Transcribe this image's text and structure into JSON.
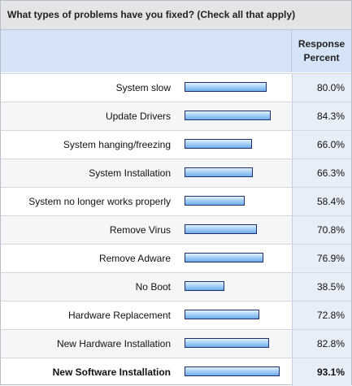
{
  "question": "What types of problems have you fixed? (Check all that apply)",
  "header": {
    "response_percent": "Response\nPercent"
  },
  "rows": [
    {
      "label": "System slow",
      "percent_text": "80.0%",
      "value": 80.0
    },
    {
      "label": "Update Drivers",
      "percent_text": "84.3%",
      "value": 84.3
    },
    {
      "label": "System hanging/freezing",
      "percent_text": "66.0%",
      "value": 66.0
    },
    {
      "label": "System Installation",
      "percent_text": "66.3%",
      "value": 66.3
    },
    {
      "label": "System no longer works properly",
      "percent_text": "58.4%",
      "value": 58.4
    },
    {
      "label": "Remove Virus",
      "percent_text": "70.8%",
      "value": 70.8
    },
    {
      "label": "Remove Adware",
      "percent_text": "76.9%",
      "value": 76.9
    },
    {
      "label": "No Boot",
      "percent_text": "38.5%",
      "value": 38.5
    },
    {
      "label": "Hardware Replacement",
      "percent_text": "72.8%",
      "value": 72.8
    },
    {
      "label": "New Hardware Installation",
      "percent_text": "82.8%",
      "value": 82.8
    },
    {
      "label": "New Software Installation",
      "percent_text": "93.1%",
      "value": 93.1,
      "bold": true
    }
  ],
  "colors": {
    "bar_border": "#1f2f6e",
    "bar_fill": "#a9d2f8",
    "header_bg": "#d5e4f6",
    "question_bg": "#e2e4e6"
  }
}
